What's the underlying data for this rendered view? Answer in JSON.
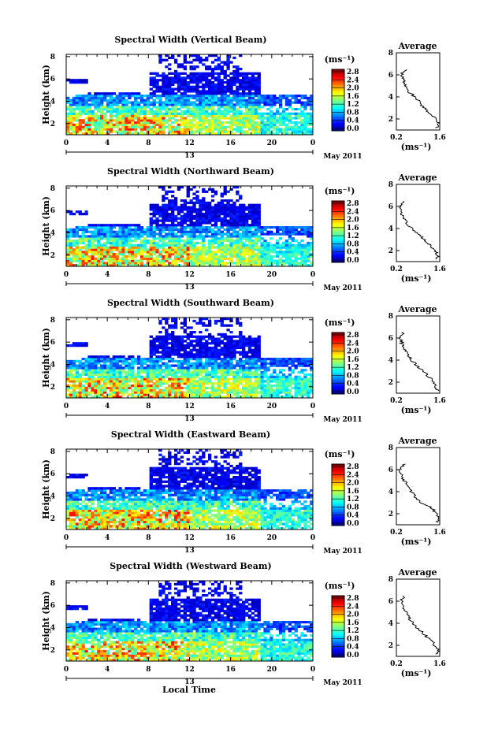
{
  "figure": {
    "xlabel": "Local Time",
    "month_label": "May 2011",
    "colorbar_unit": "(ms⁻¹)",
    "colorbar_ticks": [
      "0.0",
      "0.4",
      "0.8",
      "1.2",
      "1.6",
      "2.0",
      "2.4",
      "2.8"
    ],
    "avg_title": "Average",
    "avg_unit": "(ms⁻¹)",
    "ylabel": "Height (km)",
    "y_ticks": [
      "2",
      "4",
      "6",
      "8"
    ],
    "x_ticks": [
      "0",
      "4",
      "8",
      "12",
      "16",
      "20",
      "0"
    ],
    "day_label": "13",
    "avg_x_ticks": [
      "0.2",
      "1.6"
    ],
    "avg_y_ticks": [
      "2",
      "4",
      "6",
      "8"
    ],
    "colors": {
      "jet": [
        "#00008f",
        "#0000ff",
        "#007fff",
        "#00ffff",
        "#7fff7f",
        "#ffff00",
        "#ff7f00",
        "#ff0000",
        "#7f0000"
      ]
    }
  },
  "chart_data": [
    {
      "type": "heatmap",
      "title": "Spectral Width (Vertical Beam)",
      "xlabel": "",
      "ylabel": "Height (km)",
      "xlim": [
        0,
        24
      ],
      "ylim": [
        1,
        8.2
      ],
      "colorbar_range": [
        0,
        3.0
      ],
      "average_profile": {
        "type": "line",
        "title": "Average",
        "xlim": [
          0.2,
          1.6
        ],
        "ylim": [
          1,
          8
        ],
        "height": [
          1.2,
          1.5,
          2.0,
          2.5,
          3.0,
          3.5,
          4.0,
          4.5,
          5.0,
          5.5,
          6.0,
          6.5
        ],
        "width": [
          1.5,
          1.6,
          1.45,
          1.3,
          1.1,
          0.95,
          0.8,
          0.6,
          0.5,
          0.42,
          0.35,
          0.5
        ]
      }
    },
    {
      "type": "heatmap",
      "title": "Spectral Width (Northward Beam)",
      "xlabel": "",
      "ylabel": "Height (km)",
      "xlim": [
        0,
        24
      ],
      "ylim": [
        1,
        8.2
      ],
      "colorbar_range": [
        0,
        3.0
      ],
      "average_profile": {
        "type": "line",
        "title": "Average",
        "xlim": [
          0.2,
          1.6
        ],
        "ylim": [
          1,
          8
        ],
        "height": [
          1.2,
          1.5,
          2.0,
          2.5,
          3.0,
          3.5,
          4.0,
          4.5,
          5.0,
          5.5,
          6.0,
          6.5
        ],
        "width": [
          1.5,
          1.55,
          1.45,
          1.3,
          1.1,
          0.9,
          0.7,
          0.55,
          0.42,
          0.35,
          0.3,
          0.45
        ]
      }
    },
    {
      "type": "heatmap",
      "title": "Spectral Width (Southward Beam)",
      "xlabel": "",
      "ylabel": "Height (km)",
      "xlim": [
        0,
        24
      ],
      "ylim": [
        1,
        8.2
      ],
      "colorbar_range": [
        0,
        3.0
      ],
      "average_profile": {
        "type": "line",
        "title": "Average",
        "xlim": [
          0.2,
          1.6
        ],
        "ylim": [
          1,
          8
        ],
        "height": [
          1.2,
          1.5,
          2.0,
          2.5,
          3.0,
          3.5,
          4.0,
          4.5,
          5.0,
          5.5,
          6.0,
          6.5
        ],
        "width": [
          1.55,
          1.5,
          1.4,
          1.25,
          1.05,
          0.85,
          0.7,
          0.55,
          0.45,
          0.38,
          0.33,
          0.4
        ]
      }
    },
    {
      "type": "heatmap",
      "title": "Spectral Width (Eastward Beam)",
      "xlabel": "",
      "ylabel": "Height (km)",
      "xlim": [
        0,
        24
      ],
      "ylim": [
        1,
        8.2
      ],
      "colorbar_range": [
        0,
        3.0
      ],
      "average_profile": {
        "type": "line",
        "title": "Average",
        "xlim": [
          0.2,
          1.6
        ],
        "ylim": [
          1,
          8
        ],
        "height": [
          1.2,
          1.5,
          2.0,
          2.5,
          3.0,
          3.5,
          4.0,
          4.5,
          5.0,
          5.5,
          6.0,
          6.5
        ],
        "width": [
          1.5,
          1.6,
          1.5,
          1.35,
          1.0,
          0.8,
          0.7,
          0.6,
          0.45,
          0.35,
          0.32,
          0.45
        ]
      }
    },
    {
      "type": "heatmap",
      "title": "Spectral Width (Westward Beam)",
      "xlabel": "Local Time",
      "ylabel": "Height (km)",
      "xlim": [
        0,
        24
      ],
      "ylim": [
        1,
        8.2
      ],
      "colorbar_range": [
        0,
        3.0
      ],
      "average_profile": {
        "type": "line",
        "title": "Average",
        "xlim": [
          0.2,
          1.6
        ],
        "ylim": [
          1,
          8
        ],
        "height": [
          1.2,
          1.5,
          2.0,
          2.5,
          3.0,
          3.5,
          4.0,
          4.5,
          5.0,
          5.5,
          6.0,
          6.5
        ],
        "width": [
          1.5,
          1.55,
          1.45,
          1.3,
          1.1,
          0.9,
          0.75,
          0.6,
          0.5,
          0.42,
          0.35,
          0.45
        ]
      }
    }
  ]
}
